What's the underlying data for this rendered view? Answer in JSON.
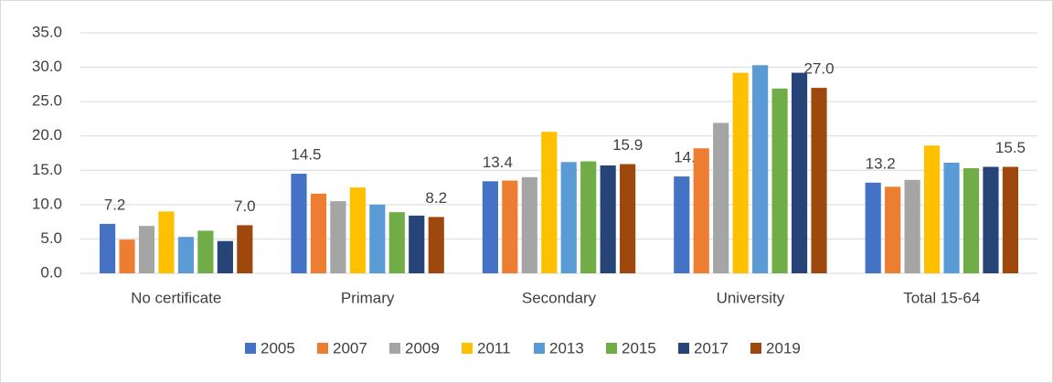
{
  "chart_data": {
    "type": "bar",
    "categories": [
      "No certificate",
      "Primary",
      "Secondary",
      "University",
      "Total 15-64"
    ],
    "series": [
      {
        "name": "2005",
        "color": "#4472c4",
        "values": [
          7.2,
          14.5,
          13.4,
          14.1,
          13.2
        ],
        "value_labels": [
          "7.2",
          "14.5",
          "13.4",
          "14.1",
          "13.2"
        ]
      },
      {
        "name": "2007",
        "color": "#ed7d31",
        "values": [
          4.9,
          11.6,
          13.5,
          18.2,
          12.6
        ]
      },
      {
        "name": "2009",
        "color": "#a5a5a5",
        "values": [
          6.9,
          10.5,
          14.0,
          21.9,
          13.6
        ]
      },
      {
        "name": "2011",
        "color": "#ffc000",
        "values": [
          9.0,
          12.5,
          20.6,
          29.2,
          18.6
        ]
      },
      {
        "name": "2013",
        "color": "#5b9bd5",
        "values": [
          5.3,
          10.0,
          16.2,
          30.3,
          16.1
        ]
      },
      {
        "name": "2015",
        "color": "#70ad47",
        "values": [
          6.2,
          8.9,
          16.3,
          26.9,
          15.3
        ]
      },
      {
        "name": "2017",
        "color": "#264478",
        "values": [
          4.7,
          8.4,
          15.7,
          29.2,
          15.5
        ]
      },
      {
        "name": "2019",
        "color": "#9e480e",
        "values": [
          7.0,
          8.2,
          15.9,
          27.0,
          15.5
        ],
        "value_labels": [
          "7.0",
          "8.2",
          "15.9",
          "27.0",
          "15.5"
        ]
      }
    ],
    "ylim": [
      0,
      35
    ],
    "yticks": [
      {
        "value": 0,
        "label": "0.0"
      },
      {
        "value": 5,
        "label": "5.0"
      },
      {
        "value": 10,
        "label": "10.0"
      },
      {
        "value": 15,
        "label": "15.0"
      },
      {
        "value": 20,
        "label": "20.0"
      },
      {
        "value": 25,
        "label": "25.0"
      },
      {
        "value": 30,
        "label": "30.0"
      },
      {
        "value": 35,
        "label": "35.0"
      }
    ],
    "grid": true,
    "legend": "bottom"
  }
}
